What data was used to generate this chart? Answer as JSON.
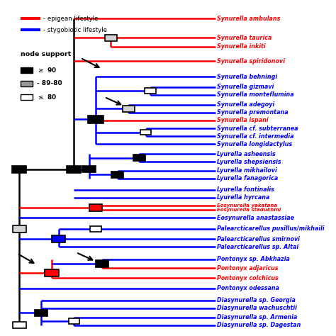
{
  "background_color": "#ffffff",
  "taxa": [
    {
      "name": "Synurella ambulans",
      "y": 33,
      "color": "red"
    },
    {
      "name": "Synurella taurica",
      "y": 31.3,
      "color": "red"
    },
    {
      "name": "Synurella inkiti",
      "y": 30.5,
      "color": "red"
    },
    {
      "name": "Synurella spiridonovi",
      "y": 29.2,
      "color": "red"
    },
    {
      "name": "Synurella behningi",
      "y": 27.8,
      "color": "blue"
    },
    {
      "name": "Synurella gizmavi",
      "y": 26.9,
      "color": "blue"
    },
    {
      "name": "Synurella monteflumina",
      "y": 26.2,
      "color": "blue"
    },
    {
      "name": "Synurella adegoyi",
      "y": 25.3,
      "color": "blue"
    },
    {
      "name": "Synurella premontana",
      "y": 24.6,
      "color": "blue"
    },
    {
      "name": "Synurella ispani",
      "y": 23.9,
      "color": "red"
    },
    {
      "name": "Synurella cf. subterranea",
      "y": 23.2,
      "color": "blue"
    },
    {
      "name": "Synurella cf. intermedia",
      "y": 22.5,
      "color": "blue"
    },
    {
      "name": "Synurella longidactylus",
      "y": 21.8,
      "color": "blue"
    },
    {
      "name": "Lyurella asheensis",
      "y": 20.9,
      "color": "blue"
    },
    {
      "name": "Lyurella shepsiensis",
      "y": 20.2,
      "color": "blue"
    },
    {
      "name": "Lyurella mikhailovi",
      "y": 19.4,
      "color": "blue"
    },
    {
      "name": "Lyurella fanagorica",
      "y": 18.7,
      "color": "blue"
    },
    {
      "name": "Lyurella fontinalis",
      "y": 17.7,
      "color": "blue"
    },
    {
      "name": "Lyurella hyrcana",
      "y": 17.0,
      "color": "blue"
    },
    {
      "name": "Eosynurella yakatana",
      "y": 16.3,
      "color": "red"
    },
    {
      "name": "Eosynurella stadukhini",
      "y": 15.9,
      "color": "red"
    },
    {
      "name": "Eosynurella anastassiae",
      "y": 15.2,
      "color": "blue"
    },
    {
      "name": "Palearcticarellus pusillus/mikhaili",
      "y": 14.2,
      "color": "blue"
    },
    {
      "name": "Palearcticarellus smirnovi",
      "y": 13.3,
      "color": "blue"
    },
    {
      "name": "Palearcticarellus sp. Altai",
      "y": 12.6,
      "color": "blue"
    },
    {
      "name": "Pontonyx sp. Abkhazia",
      "y": 11.5,
      "color": "blue"
    },
    {
      "name": "Pontonyx adjaricus",
      "y": 10.7,
      "color": "red"
    },
    {
      "name": "Pontonyx colchicus",
      "y": 9.8,
      "color": "red"
    },
    {
      "name": "Pontonyx odessana",
      "y": 8.9,
      "color": "blue"
    },
    {
      "name": "Diasynurella sp. Georgia",
      "y": 7.8,
      "color": "blue"
    },
    {
      "name": "Diasynurella wachuschtii",
      "y": 7.1,
      "color": "blue"
    },
    {
      "name": "Diasynurella sp. Armenia",
      "y": 6.3,
      "color": "blue"
    },
    {
      "name": "Diasynurella sp. Dagestan",
      "y": 5.6,
      "color": "blue"
    }
  ]
}
